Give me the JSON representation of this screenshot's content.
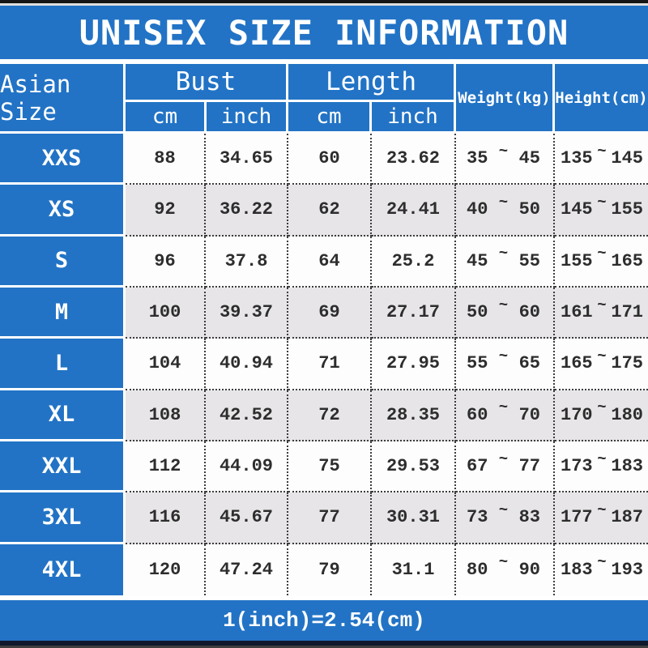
{
  "title": "UNISEX SIZE INFORMATION",
  "colors": {
    "accent_blue": "#2273C5",
    "row_gray": "#E7E5E8",
    "row_white": "#FDFDFD",
    "dotted_border": "#3c3c3c",
    "top_bar_black": "#161616",
    "bottom_bar_navy": "#10182c"
  },
  "chart_data": {
    "type": "table",
    "title": "UNISEX SIZE INFORMATION",
    "columns": [
      "Asian Size",
      "Bust cm",
      "Bust inch",
      "Length cm",
      "Length inch",
      "Weight(kg)",
      "Height(cm)"
    ],
    "rows": [
      [
        "XXS",
        "88",
        "34.65",
        "60",
        "23.62",
        "35~45",
        "135~145"
      ],
      [
        "XS",
        "92",
        "36.22",
        "62",
        "24.41",
        "40~50",
        "145~155"
      ],
      [
        "S",
        "96",
        "37.8",
        "64",
        "25.2",
        "45~55",
        "155~165"
      ],
      [
        "M",
        "100",
        "39.37",
        "69",
        "27.17",
        "50~60",
        "161~171"
      ],
      [
        "L",
        "104",
        "40.94",
        "71",
        "27.95",
        "55~65",
        "165~175"
      ],
      [
        "XL",
        "108",
        "42.52",
        "72",
        "28.35",
        "60~70",
        "170~180"
      ],
      [
        "XXL",
        "112",
        "44.09",
        "75",
        "29.53",
        "67~77",
        "173~183"
      ],
      [
        "3XL",
        "116",
        "45.67",
        "77",
        "30.31",
        "73~83",
        "177~187"
      ],
      [
        "4XL",
        "120",
        "47.24",
        "79",
        "31.1",
        "80~90",
        "183~193"
      ]
    ]
  },
  "table": {
    "size_header": "Asian Size",
    "groups": [
      {
        "label": "Bust",
        "sub": [
          "cm",
          "inch"
        ]
      },
      {
        "label": "Length",
        "sub": [
          "cm",
          "inch"
        ]
      }
    ],
    "single_headers": [
      "Weight(kg)",
      "Height(cm)"
    ],
    "range_separator": "~",
    "rows": [
      {
        "size": "XXS",
        "bust_cm": "88",
        "bust_inch": "34.65",
        "length_cm": "60",
        "length_inch": "23.62",
        "weight": [
          "35",
          "45"
        ],
        "height": [
          "135",
          "145"
        ]
      },
      {
        "size": "XS",
        "bust_cm": "92",
        "bust_inch": "36.22",
        "length_cm": "62",
        "length_inch": "24.41",
        "weight": [
          "40",
          "50"
        ],
        "height": [
          "145",
          "155"
        ]
      },
      {
        "size": "S",
        "bust_cm": "96",
        "bust_inch": "37.8",
        "length_cm": "64",
        "length_inch": "25.2",
        "weight": [
          "45",
          "55"
        ],
        "height": [
          "155",
          "165"
        ]
      },
      {
        "size": "M",
        "bust_cm": "100",
        "bust_inch": "39.37",
        "length_cm": "69",
        "length_inch": "27.17",
        "weight": [
          "50",
          "60"
        ],
        "height": [
          "161",
          "171"
        ]
      },
      {
        "size": "L",
        "bust_cm": "104",
        "bust_inch": "40.94",
        "length_cm": "71",
        "length_inch": "27.95",
        "weight": [
          "55",
          "65"
        ],
        "height": [
          "165",
          "175"
        ]
      },
      {
        "size": "XL",
        "bust_cm": "108",
        "bust_inch": "42.52",
        "length_cm": "72",
        "length_inch": "28.35",
        "weight": [
          "60",
          "70"
        ],
        "height": [
          "170",
          "180"
        ]
      },
      {
        "size": "XXL",
        "bust_cm": "112",
        "bust_inch": "44.09",
        "length_cm": "75",
        "length_inch": "29.53",
        "weight": [
          "67",
          "77"
        ],
        "height": [
          "173",
          "183"
        ]
      },
      {
        "size": "3XL",
        "bust_cm": "116",
        "bust_inch": "45.67",
        "length_cm": "77",
        "length_inch": "30.31",
        "weight": [
          "73",
          "83"
        ],
        "height": [
          "177",
          "187"
        ]
      },
      {
        "size": "4XL",
        "bust_cm": "120",
        "bust_inch": "47.24",
        "length_cm": "79",
        "length_inch": "31.1",
        "weight": [
          "80",
          "90"
        ],
        "height": [
          "183",
          "193"
        ]
      }
    ]
  },
  "footer": {
    "note": "1(inch)=2.54(cm)"
  }
}
